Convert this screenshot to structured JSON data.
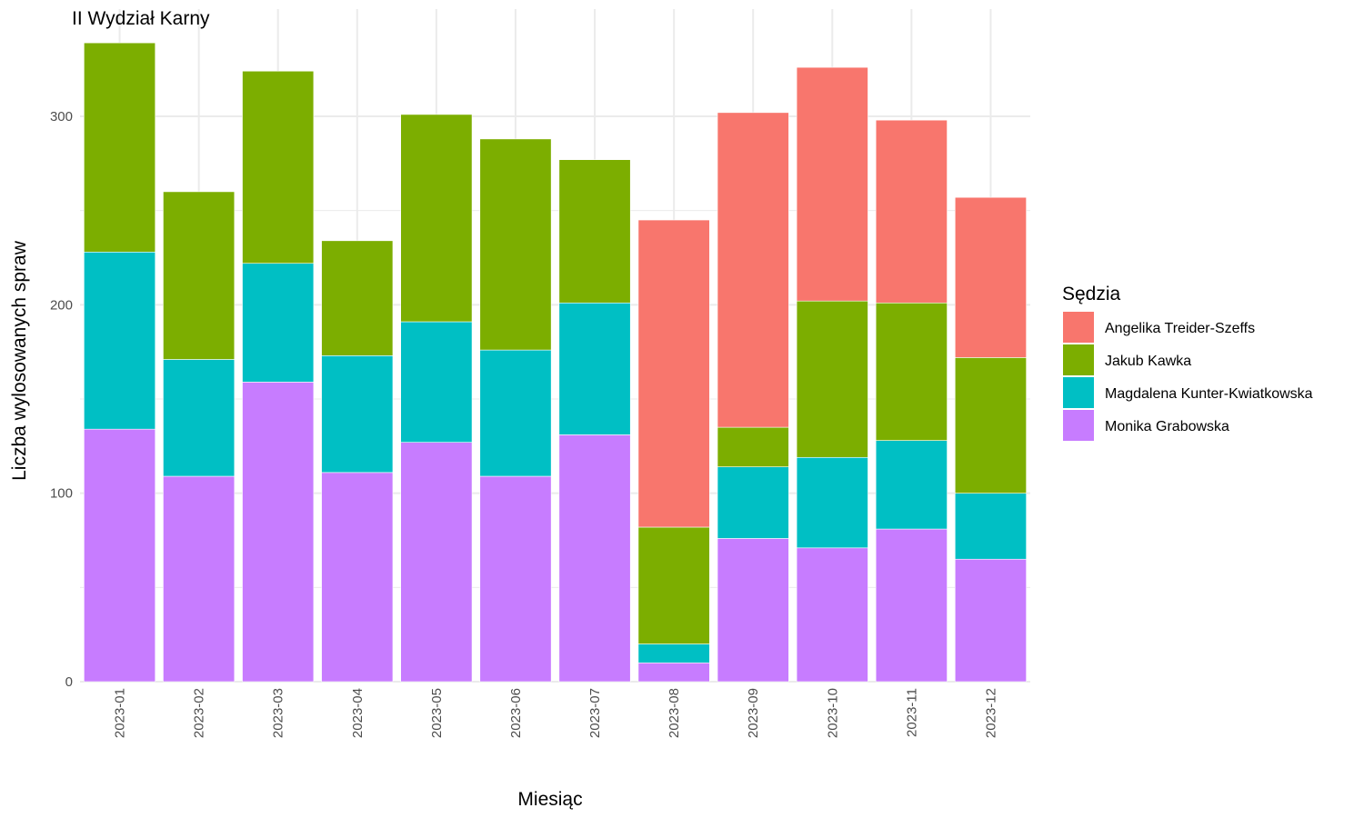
{
  "chart_data": {
    "type": "bar",
    "stacked": true,
    "title": "II Wydział Karny",
    "xlabel": "Miesiąc",
    "ylabel": "Liczba wylosowanych spraw",
    "ylim": [
      0,
      340
    ],
    "yticks": [
      0,
      100,
      200,
      300
    ],
    "grid": true,
    "legend_title": "Sędzia",
    "legend_position": "right",
    "categories": [
      "2023-01",
      "2023-02",
      "2023-03",
      "2023-04",
      "2023-05",
      "2023-06",
      "2023-07",
      "2023-08",
      "2023-09",
      "2023-10",
      "2023-11",
      "2023-12"
    ],
    "series": [
      {
        "name": "Monika Grabowska",
        "color": "#C77CFF",
        "values": [
          134,
          109,
          159,
          111,
          127,
          109,
          131,
          10,
          76,
          71,
          81,
          65
        ]
      },
      {
        "name": "Magdalena Kunter-Kwiatkowska",
        "color": "#00BFC4",
        "values": [
          94,
          62,
          63,
          62,
          64,
          67,
          70,
          10,
          38,
          48,
          47,
          35
        ]
      },
      {
        "name": "Jakub Kawka",
        "color": "#7CAE00",
        "values": [
          111,
          89,
          102,
          61,
          110,
          112,
          76,
          62,
          21,
          83,
          73,
          72
        ]
      },
      {
        "name": "Angelika Treider-Szeffs",
        "color": "#F8766D",
        "values": [
          0,
          0,
          0,
          0,
          0,
          0,
          0,
          163,
          167,
          124,
          97,
          85
        ]
      }
    ],
    "legend_order": [
      "Angelika Treider-Szeffs",
      "Jakub Kawka",
      "Magdalena Kunter-Kwiatkowska",
      "Monika Grabowska"
    ]
  }
}
